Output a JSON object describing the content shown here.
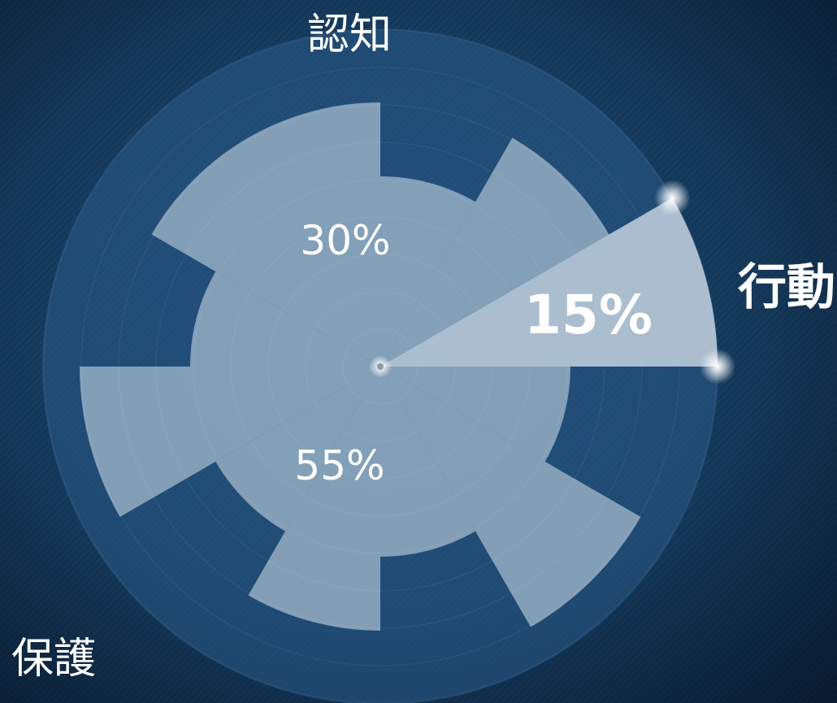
{
  "chart_data": {
    "type": "polar-area",
    "series": [
      {
        "label": "認知",
        "value": 30,
        "value_label": "30%",
        "highlight": false
      },
      {
        "label": "行動",
        "value": 15,
        "value_label": "15%",
        "highlight": true
      },
      {
        "label": "保護",
        "value": 55,
        "value_label": "55%",
        "highlight": false
      }
    ],
    "colors": {
      "background": "#0f2a47",
      "outer_disc": "#2a5a86",
      "segment_fill": "#a9bfd1",
      "highlight_fill": "#c9d7e3",
      "label_text": "#ffffff"
    }
  }
}
